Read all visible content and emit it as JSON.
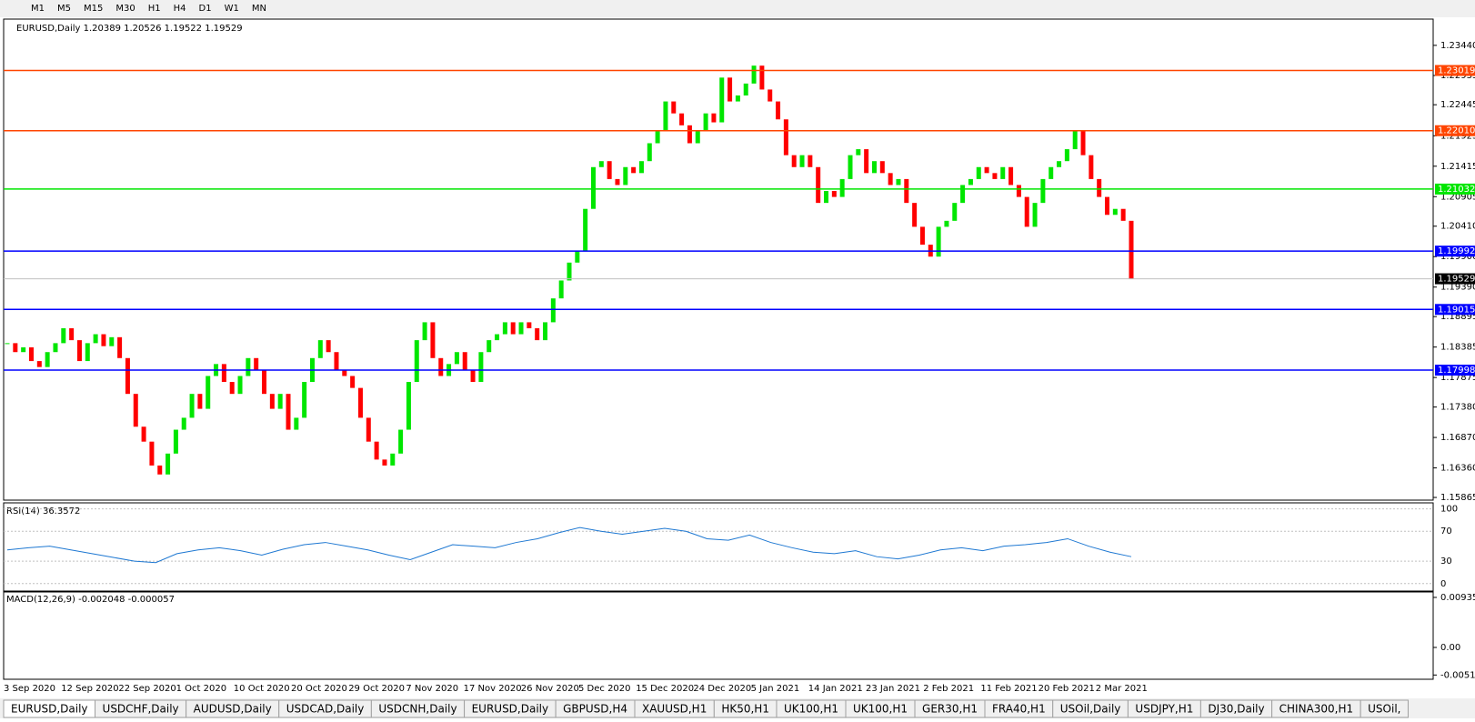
{
  "toolbar": {
    "timeframes": [
      "M1",
      "M5",
      "M15",
      "M30",
      "H1",
      "H4",
      "D1",
      "W1",
      "MN"
    ]
  },
  "chart_data": {
    "type": "candlestick",
    "title": "EURUSD,Daily  1.20389 1.20526 1.19522 1.19529",
    "categories": [
      "3 Sep 2020",
      "12 Sep 2020",
      "22 Sep 2020",
      "1 Oct 2020",
      "10 Oct 2020",
      "20 Oct 2020",
      "29 Oct 2020",
      "7 Nov 2020",
      "17 Nov 2020",
      "26 Nov 2020",
      "5 Dec 2020",
      "15 Dec 2020",
      "24 Dec 2020",
      "5 Jan 2021",
      "14 Jan 2021",
      "23 Jan 2021",
      "2 Feb 2021",
      "11 Feb 2021",
      "20 Feb 2021",
      "2 Mar 2021"
    ],
    "closes": [
      1.1845,
      1.183,
      1.1838,
      1.1815,
      1.1805,
      1.183,
      1.1845,
      1.187,
      1.185,
      1.1815,
      1.1845,
      1.186,
      1.184,
      1.1855,
      1.182,
      1.176,
      1.1705,
      1.168,
      1.164,
      1.1625,
      1.166,
      1.17,
      1.172,
      1.176,
      1.1735,
      1.179,
      1.181,
      1.178,
      1.176,
      1.179,
      1.182,
      1.18,
      1.176,
      1.1735,
      1.176,
      1.17,
      1.172,
      1.178,
      1.182,
      1.185,
      1.183,
      1.18,
      1.179,
      1.177,
      1.172,
      1.168,
      1.165,
      1.164,
      1.166,
      1.17,
      1.178,
      1.185,
      1.188,
      1.182,
      1.179,
      1.181,
      1.183,
      1.18,
      1.178,
      1.183,
      1.185,
      1.186,
      1.188,
      1.186,
      1.188,
      1.187,
      1.185,
      1.188,
      1.192,
      1.195,
      1.198,
      1.2,
      1.207,
      1.214,
      1.215,
      1.212,
      1.211,
      1.214,
      1.213,
      1.215,
      1.218,
      1.22,
      1.225,
      1.223,
      1.221,
      1.218,
      1.22,
      1.223,
      1.2215,
      1.229,
      1.225,
      1.226,
      1.228,
      1.231,
      1.227,
      1.225,
      1.222,
      1.216,
      1.214,
      1.216,
      1.214,
      1.208,
      1.21,
      1.209,
      1.212,
      1.216,
      1.217,
      1.213,
      1.215,
      1.213,
      1.211,
      1.212,
      1.208,
      1.204,
      1.201,
      1.199,
      1.204,
      1.205,
      1.208,
      1.211,
      1.212,
      1.214,
      1.213,
      1.212,
      1.214,
      1.211,
      1.209,
      1.204,
      1.208,
      1.212,
      1.214,
      1.215,
      1.217,
      1.22,
      1.216,
      1.212,
      1.209,
      1.206,
      1.207,
      1.205,
      1.1953
    ],
    "up_color": "#00e600",
    "down_color": "#ff0000",
    "ylim": [
      1.1582,
      1.2388
    ],
    "yticks": [
      {
        "value": 1.2344,
        "label": "1.23440"
      },
      1.22935,
      1.22445,
      1.21925,
      1.21415,
      1.20905,
      {
        "value": 1.2041,
        "label": "1.20410"
      },
      {
        "value": 1.199,
        "label": "1.19900"
      },
      {
        "value": 1.1939,
        "label": "1.19390"
      },
      1.18895,
      1.18385,
      1.17875,
      {
        "value": 1.1738,
        "label": "1.17380"
      },
      {
        "value": 1.1687,
        "label": "1.16870"
      },
      {
        "value": 1.1636,
        "label": "1.16360"
      },
      1.15865
    ],
    "levels": [
      {
        "value": 1.23019,
        "color": "#ff4500"
      },
      {
        "value": 1.2201,
        "label": "1.22010",
        "color": "#ff4500"
      },
      {
        "value": 1.21032,
        "color": "#00e600"
      },
      {
        "value": 1.19992,
        "color": "#0000ff"
      },
      {
        "value": 1.19015,
        "color": "#0000ff"
      },
      {
        "value": 1.17998,
        "color": "#0000ff"
      }
    ],
    "current": 1.19529
  },
  "rsi": {
    "title": "RSI(14) 36.3572",
    "ylim": [
      -10,
      108
    ],
    "yticks": [
      100,
      70,
      30,
      0
    ],
    "color": "#1e78d2",
    "values": [
      45,
      48,
      50,
      45,
      40,
      35,
      30,
      28,
      40,
      45,
      48,
      44,
      38,
      46,
      52,
      55,
      50,
      45,
      38,
      32,
      42,
      52,
      50,
      48,
      55,
      60,
      68,
      75,
      70,
      66,
      70,
      74,
      70,
      60,
      58,
      65,
      55,
      48,
      42,
      40,
      44,
      36,
      33,
      38,
      45,
      48,
      44,
      50,
      52,
      55,
      60,
      50,
      42,
      36
    ]
  },
  "macd": {
    "title": "MACD(12,26,9) -0.002048 -0.000057",
    "ylim": [
      -0.00595,
      0.01037
    ],
    "yticks": [
      0.009354,
      {
        "value": 0,
        "label": "0.00"
      },
      -0.005156
    ]
  },
  "tabs": [
    "EURUSD,Daily",
    "USDCHF,Daily",
    "AUDUSD,Daily",
    "USDCAD,Daily",
    "USDCNH,Daily",
    "EURUSD,Daily",
    "GBPUSD,H4",
    "XAUUSD,H1",
    "HK50,H1",
    "UK100,H1",
    "UK100,H1",
    "GER30,H1",
    "FRA40,H1",
    "USOil,Daily",
    "USDJPY,H1",
    "DJ30,Daily",
    "CHINA300,H1",
    "USOil,"
  ]
}
